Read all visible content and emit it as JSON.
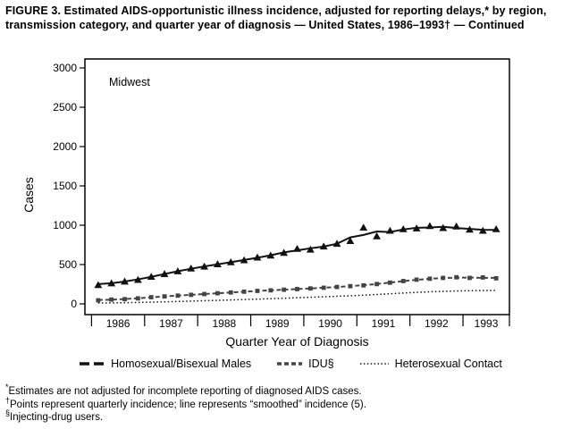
{
  "caption": {
    "text": "FIGURE 3. Estimated AIDS-opportunistic illness incidence, adjusted for reporting delays,* by region, transmission category, and quarter year of diagnosis — United States, 1986–1993† — Continued"
  },
  "chart_data": {
    "type": "line",
    "panel_label": "Midwest",
    "xlabel": "Quarter Year of Diagnosis",
    "ylabel": "Cases",
    "ylim": [
      0,
      3000
    ],
    "ytick_step": 500,
    "years": [
      1986,
      1987,
      1988,
      1989,
      1990,
      1991,
      1992,
      1993
    ],
    "quarters_per_year": 4,
    "x_start": "1986 Q1",
    "x_end": "1993 Q3",
    "legend_position": "bottom",
    "grid": false,
    "series": [
      {
        "name": "Homosexual/Bisexual Males",
        "marker": "triangle",
        "line": "solid",
        "color": "#111111",
        "values": [
          240,
          262,
          285,
          305,
          345,
          380,
          415,
          450,
          475,
          505,
          530,
          555,
          590,
          615,
          650,
          700,
          690,
          730,
          765,
          800,
          970,
          860,
          930,
          950,
          960,
          990,
          965,
          985,
          945,
          930,
          950
        ]
      },
      {
        "name": "IDU§",
        "marker": "square",
        "line": "dashed",
        "color": "#444444",
        "values": [
          45,
          55,
          60,
          70,
          85,
          95,
          105,
          115,
          125,
          135,
          145,
          155,
          165,
          172,
          180,
          188,
          196,
          205,
          215,
          225,
          235,
          252,
          270,
          290,
          308,
          320,
          330,
          338,
          330,
          336,
          325
        ]
      },
      {
        "name": "Heterosexual Contact",
        "marker": "none",
        "line": "dotted",
        "color": "#111111",
        "values": [
          10,
          12,
          15,
          18,
          22,
          26,
          30,
          35,
          40,
          45,
          50,
          55,
          60,
          66,
          72,
          78,
          84,
          90,
          96,
          103,
          110,
          119,
          128,
          138,
          147,
          154,
          160,
          165,
          168,
          170,
          172
        ]
      }
    ]
  },
  "footnotes": [
    {
      "marker": "*",
      "text": "Estimates are not adjusted for incomplete reporting of diagnosed AIDS cases."
    },
    {
      "marker": "†",
      "text": "Points represent quarterly incidence; line represents “smoothed” incidence (5)."
    },
    {
      "marker": "§",
      "text": "Injecting-drug users."
    }
  ]
}
